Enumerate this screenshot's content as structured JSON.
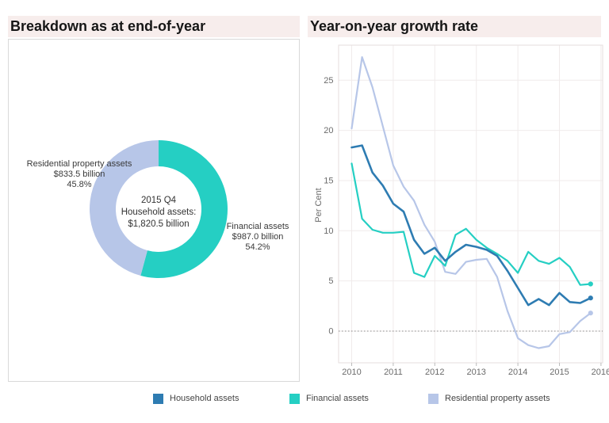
{
  "panels": {
    "left": {
      "title": "Breakdown as at end-of-year"
    },
    "right": {
      "title": "Year-on-year growth rate"
    }
  },
  "styles": {
    "title_strip_bg": "#f7edec",
    "panel_border": "#e4dede",
    "box_border": "#d9d9d9",
    "grid_color": "#f0ebeb",
    "axis_text_color": "#6b6b6b",
    "zero_line_color": "#8a8a8a",
    "household_color": "#2e7cb2",
    "financial_color": "#25cfc3",
    "residential_color": "#b7c6e8"
  },
  "chart_data": [
    {
      "type": "pie",
      "subtype": "donut",
      "title": "Breakdown as at end-of-year",
      "center_label": {
        "line1": "2015 Q4",
        "line2": "Household assets:",
        "line3": "$1,820.5 billion"
      },
      "start": "top",
      "direction": "clockwise",
      "slices": [
        {
          "name": "Financial assets",
          "value_label": "$987.0 billion",
          "percent": 54.2,
          "percent_label": "54.2%",
          "color": "#25cfc3"
        },
        {
          "name": "Residential property assets",
          "value_label": "$833.5 billion",
          "percent": 45.8,
          "percent_label": "45.8%",
          "color": "#b7c6e8"
        }
      ]
    },
    {
      "type": "line",
      "title": "Year-on-year growth rate",
      "ylabel": "Per Cent",
      "x_tick_labels": [
        "2010",
        "2011",
        "2012",
        "2013",
        "2014",
        "2015",
        "2016"
      ],
      "y_ticks": [
        0,
        5,
        10,
        15,
        20,
        25
      ],
      "ylim": [
        -3,
        28.5
      ],
      "x_start_year": 2010,
      "x_step_years": 0.25,
      "zero_reference_line": true,
      "legend_position": "bottom",
      "series": [
        {
          "name": "Household assets",
          "color": "#2e7cb2",
          "values": [
            18.3,
            18.5,
            15.8,
            14.5,
            12.7,
            11.9,
            9.1,
            7.7,
            8.3,
            7.0,
            7.9,
            8.6,
            8.4,
            8.1,
            7.5,
            6.0,
            4.3,
            2.6,
            3.2,
            2.6,
            3.8,
            2.9,
            2.8,
            3.3
          ]
        },
        {
          "name": "Financial assets",
          "color": "#25cfc3",
          "values": [
            16.7,
            11.2,
            10.1,
            9.8,
            9.8,
            9.9,
            5.8,
            5.4,
            7.5,
            6.5,
            9.6,
            10.2,
            9.1,
            8.3,
            7.7,
            7.0,
            5.8,
            7.9,
            7.0,
            6.7,
            7.3,
            6.4,
            4.6,
            4.7
          ]
        },
        {
          "name": "Residential property assets",
          "color": "#b7c6e8",
          "values": [
            20.2,
            27.3,
            24.3,
            20.4,
            16.5,
            14.4,
            13.0,
            10.6,
            8.9,
            5.9,
            5.7,
            6.9,
            7.1,
            7.2,
            5.4,
            2.0,
            -0.7,
            -1.4,
            -1.7,
            -1.5,
            -0.3,
            -0.1,
            1.0,
            1.8
          ]
        }
      ]
    }
  ]
}
